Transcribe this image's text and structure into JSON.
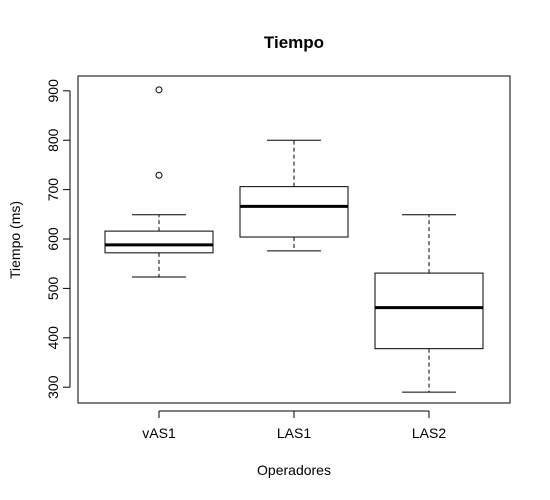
{
  "chart_data": {
    "type": "boxplot",
    "title": "Tiempo",
    "xlabel": "Operadores",
    "ylabel": "Tiempo (ms)",
    "ylim": [
      268,
      930
    ],
    "yticks": [
      300,
      400,
      500,
      600,
      700,
      800,
      900
    ],
    "categories": [
      "vAS1",
      "LAS1",
      "LAS2"
    ],
    "boxes": [
      {
        "category": "vAS1",
        "whisker_low": 523,
        "q1": 572,
        "median": 588,
        "q3": 616,
        "whisker_high": 649,
        "outliers": [
          729,
          902
        ]
      },
      {
        "category": "LAS1",
        "whisker_low": 576,
        "q1": 604,
        "median": 666,
        "q3": 706,
        "whisker_high": 800,
        "outliers": []
      },
      {
        "category": "LAS2",
        "whisker_low": 290,
        "q1": 378,
        "median": 461,
        "q3": 531,
        "whisker_high": 649,
        "outliers": []
      }
    ],
    "grid": false,
    "colors": {
      "box_fill": "#ffffff",
      "stroke": "#000000"
    }
  }
}
